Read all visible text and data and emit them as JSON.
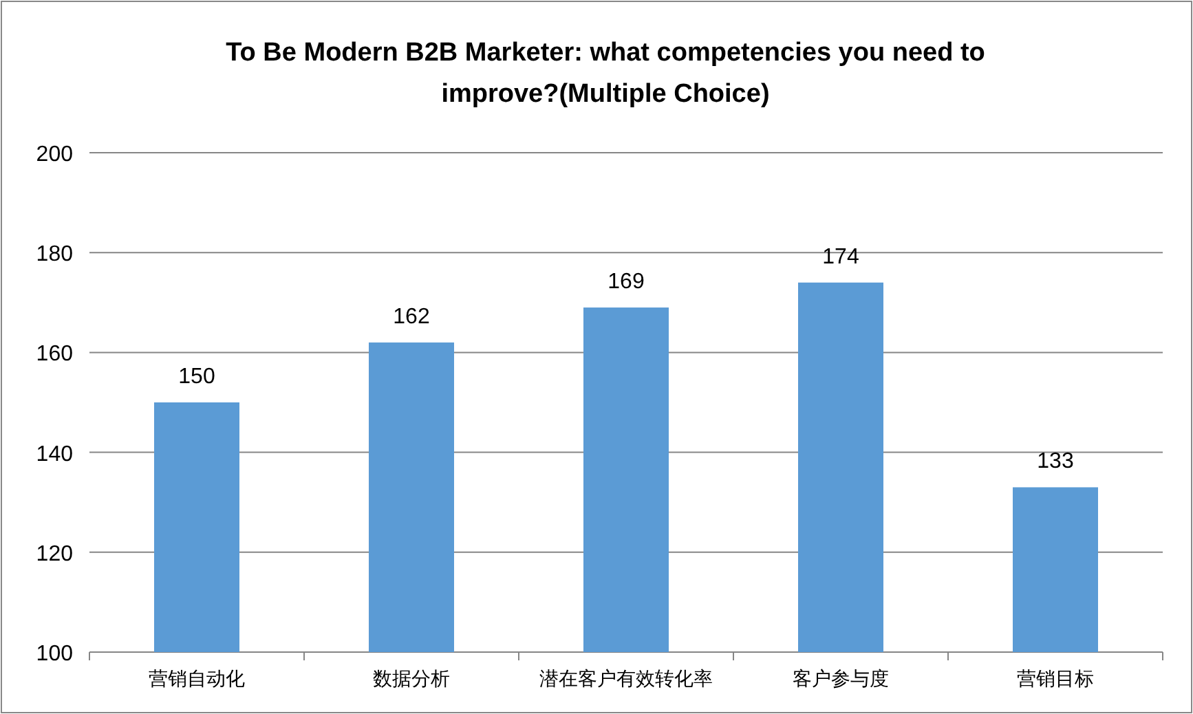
{
  "chart_data": {
    "type": "bar",
    "title": "To Be Modern B2B Marketer: what competencies you need to improve?(Multiple Choice)",
    "categories": [
      "营销自动化",
      "数据分析",
      "潜在客户有效转化率",
      "客户参与度",
      "营销目标"
    ],
    "values": [
      150,
      162,
      169,
      174,
      133
    ],
    "color": "#5b9bd5",
    "ylim": [
      100,
      200
    ],
    "yticks": [
      100,
      120,
      140,
      160,
      180,
      200
    ],
    "grid": "y",
    "data_labels": true
  }
}
